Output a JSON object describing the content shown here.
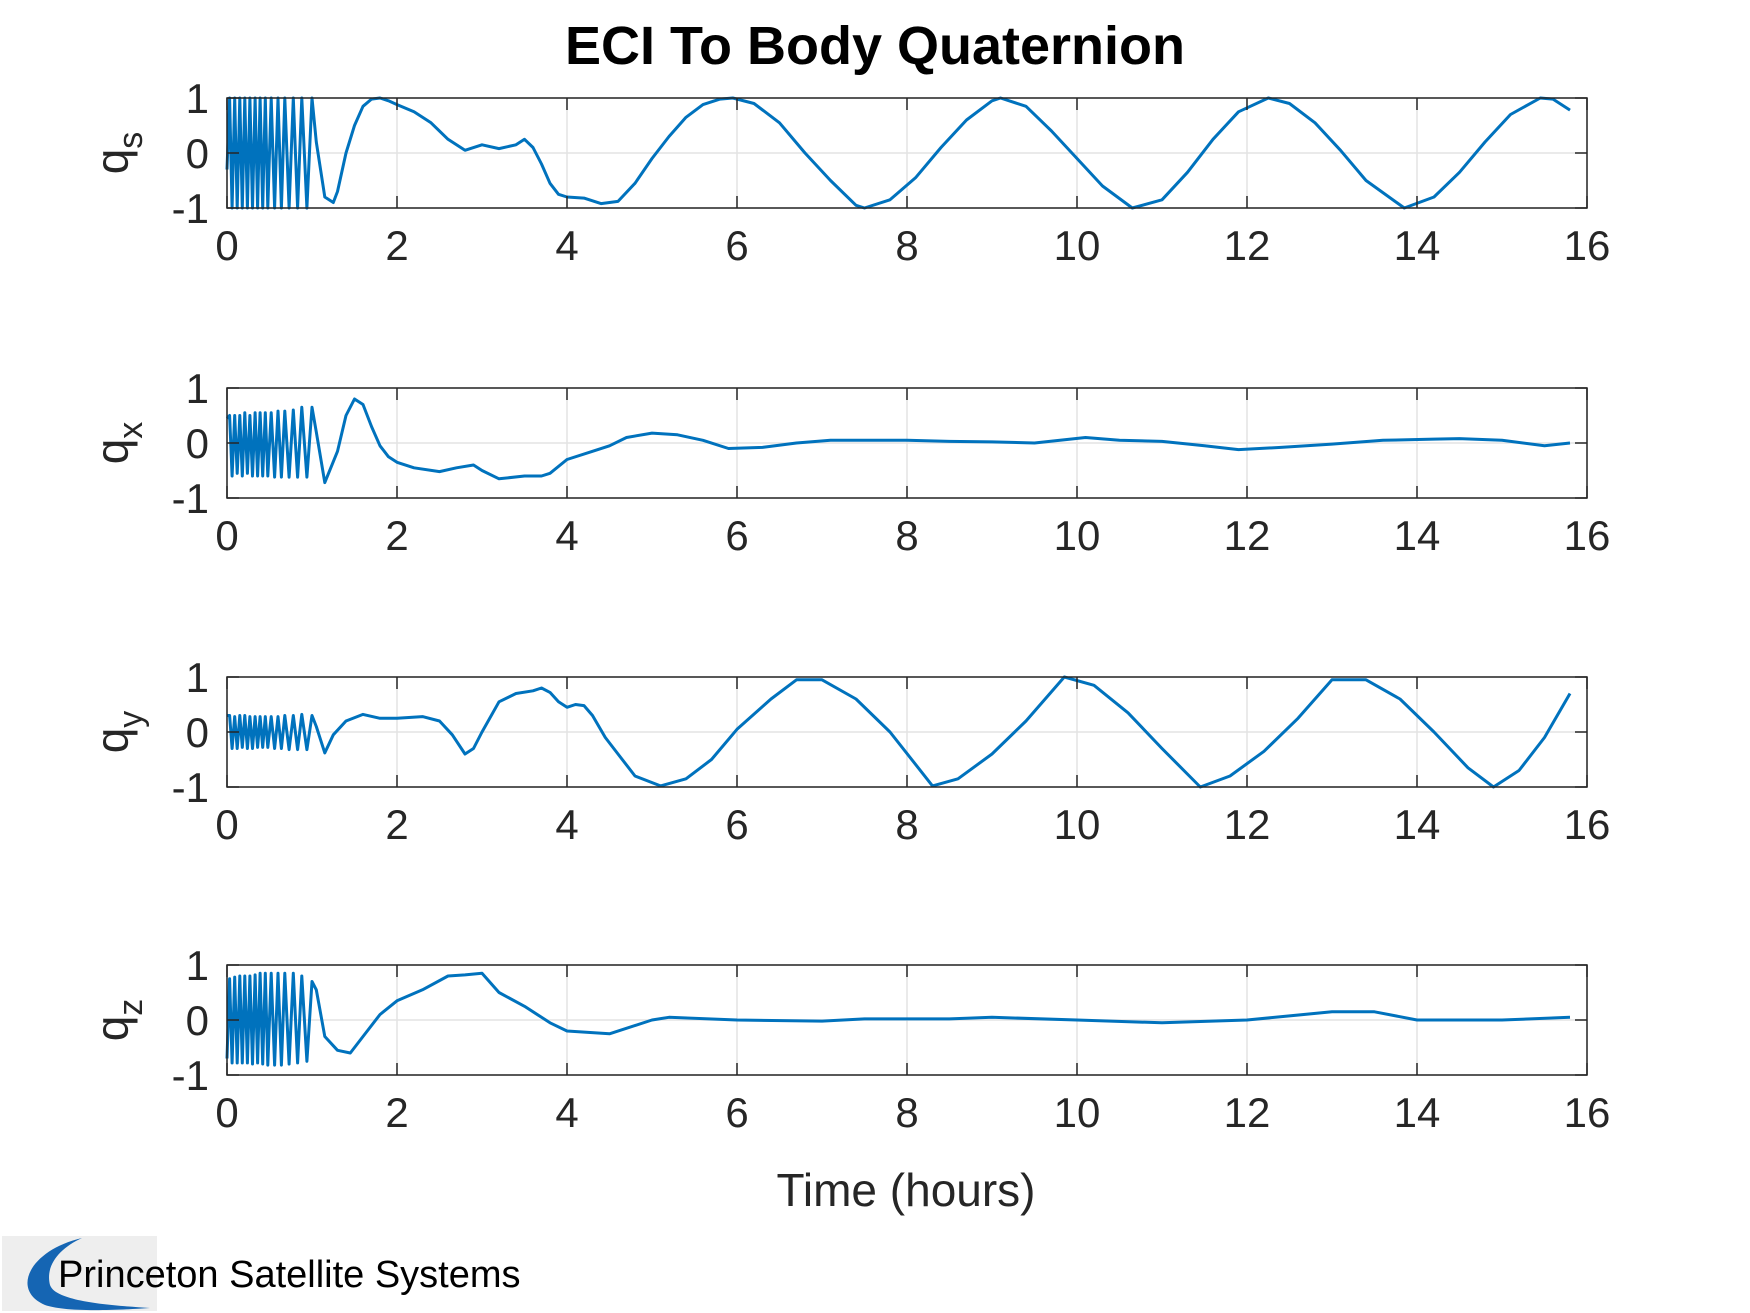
{
  "chart_data": {
    "type": "line",
    "title": "ECI To Body Quaternion",
    "xlabel": "Time (hours)",
    "xlim": [
      0,
      16
    ],
    "xticks": [
      0,
      2,
      4,
      6,
      8,
      10,
      12,
      14,
      16
    ],
    "ylim": [
      -1,
      1
    ],
    "yticks": [
      -1,
      0,
      1
    ],
    "grid": true,
    "line_color": "#0072BD",
    "panels": [
      {
        "ylabel": "q",
        "subscript": "s",
        "series": [
          {
            "x": [
              0,
              0.03,
              0.06,
              0.09,
              0.12,
              0.15,
              0.18,
              0.21,
              0.24,
              0.27,
              0.3,
              0.33,
              0.36,
              0.39,
              0.42,
              0.45,
              0.48,
              0.52,
              0.56,
              0.6,
              0.64,
              0.68,
              0.73,
              0.78,
              0.83,
              0.88,
              0.94,
              1.0,
              1.05,
              1.15,
              1.25,
              1.3,
              1.4,
              1.5,
              1.6,
              1.7,
              1.8,
              1.9,
              2.0,
              2.2,
              2.4,
              2.6,
              2.8,
              3.0,
              3.2,
              3.4,
              3.5,
              3.6,
              3.7,
              3.8,
              3.9,
              4.0,
              4.2,
              4.4,
              4.6,
              4.8,
              5.0,
              5.2,
              5.4,
              5.6,
              5.8,
              5.95,
              6.2,
              6.5,
              6.8,
              7.1,
              7.4,
              7.5,
              7.8,
              8.1,
              8.4,
              8.7,
              9.0,
              9.1,
              9.4,
              9.7,
              10.0,
              10.3,
              10.65,
              11.0,
              11.3,
              11.6,
              11.9,
              12.25,
              12.5,
              12.8,
              13.1,
              13.4,
              13.85,
              14.2,
              14.5,
              14.8,
              15.1,
              15.45,
              15.6,
              15.8
            ],
            "y": [
              -0.3,
              1,
              -1,
              1,
              -1,
              1,
              -1,
              1,
              -1,
              1,
              -1,
              1,
              -1,
              1,
              -1,
              1,
              -1,
              1,
              -1,
              1,
              -1,
              1,
              -1,
              1,
              -1,
              1,
              -1,
              1,
              0.2,
              -0.8,
              -0.9,
              -0.7,
              0,
              0.5,
              0.85,
              0.98,
              1,
              0.95,
              0.88,
              0.75,
              0.55,
              0.25,
              0.05,
              0.15,
              0.08,
              0.15,
              0.25,
              0.1,
              -0.2,
              -0.55,
              -0.75,
              -0.8,
              -0.82,
              -0.92,
              -0.88,
              -0.55,
              -0.1,
              0.3,
              0.65,
              0.88,
              0.98,
              1,
              0.9,
              0.55,
              0,
              -0.5,
              -0.95,
              -1,
              -0.85,
              -0.45,
              0.1,
              0.6,
              0.95,
              1,
              0.85,
              0.4,
              -0.1,
              -0.6,
              -1,
              -0.85,
              -0.35,
              0.25,
              0.75,
              1,
              0.9,
              0.55,
              0.05,
              -0.5,
              -1,
              -0.8,
              -0.35,
              0.2,
              0.7,
              1,
              0.98,
              0.78
            ]
          }
        ]
      },
      {
        "ylabel": "q",
        "subscript": "x",
        "series": [
          {
            "x": [
              0,
              0.03,
              0.06,
              0.09,
              0.12,
              0.15,
              0.18,
              0.21,
              0.24,
              0.27,
              0.3,
              0.33,
              0.36,
              0.39,
              0.42,
              0.45,
              0.48,
              0.52,
              0.56,
              0.6,
              0.64,
              0.68,
              0.73,
              0.78,
              0.83,
              0.88,
              0.94,
              1.0,
              1.05,
              1.15,
              1.3,
              1.4,
              1.5,
              1.6,
              1.7,
              1.8,
              1.9,
              2.0,
              2.2,
              2.5,
              2.7,
              2.9,
              3.0,
              3.2,
              3.5,
              3.7,
              3.8,
              4.0,
              4.3,
              4.5,
              4.7,
              5.0,
              5.3,
              5.6,
              5.9,
              6.3,
              6.7,
              7.1,
              7.5,
              8.0,
              8.5,
              9.0,
              9.5,
              10.1,
              10.5,
              11.0,
              11.5,
              11.9,
              12.4,
              13.0,
              13.6,
              14.2,
              14.5,
              15.0,
              15.5,
              15.8
            ],
            "y": [
              0.45,
              0.5,
              -0.6,
              0.5,
              -0.55,
              0.5,
              -0.6,
              0.55,
              -0.55,
              0.5,
              -0.6,
              0.55,
              -0.6,
              0.55,
              -0.6,
              0.55,
              -0.6,
              0.55,
              -0.62,
              0.58,
              -0.62,
              0.58,
              -0.62,
              0.6,
              -0.62,
              0.65,
              -0.62,
              0.65,
              0.2,
              -0.72,
              -0.15,
              0.5,
              0.8,
              0.7,
              0.3,
              -0.05,
              -0.25,
              -0.35,
              -0.45,
              -0.52,
              -0.45,
              -0.4,
              -0.5,
              -0.65,
              -0.6,
              -0.6,
              -0.55,
              -0.3,
              -0.15,
              -0.05,
              0.1,
              0.18,
              0.15,
              0.05,
              -0.1,
              -0.08,
              0,
              0.05,
              0.05,
              0.05,
              0.03,
              0.02,
              0,
              0.1,
              0.05,
              0.03,
              -0.05,
              -0.12,
              -0.08,
              -0.02,
              0.05,
              0.07,
              0.08,
              0.05,
              -0.05,
              0
            ]
          }
        ]
      },
      {
        "ylabel": "q",
        "subscript": "y",
        "series": [
          {
            "x": [
              0,
              0.03,
              0.06,
              0.09,
              0.12,
              0.15,
              0.18,
              0.21,
              0.24,
              0.27,
              0.3,
              0.33,
              0.36,
              0.39,
              0.42,
              0.45,
              0.48,
              0.52,
              0.56,
              0.6,
              0.64,
              0.68,
              0.73,
              0.78,
              0.83,
              0.88,
              0.94,
              1.0,
              1.05,
              1.15,
              1.25,
              1.4,
              1.6,
              1.8,
              2.0,
              2.3,
              2.5,
              2.65,
              2.8,
              2.9,
              3.0,
              3.2,
              3.4,
              3.6,
              3.7,
              3.8,
              3.9,
              4.0,
              4.1,
              4.2,
              4.3,
              4.45,
              4.6,
              4.8,
              5.1,
              5.4,
              5.7,
              6.0,
              6.4,
              6.7,
              7.0,
              7.4,
              7.8,
              8.3,
              8.6,
              9.0,
              9.4,
              9.85,
              10.2,
              10.6,
              11.0,
              11.45,
              11.8,
              12.2,
              12.6,
              13.0,
              13.4,
              13.8,
              14.2,
              14.6,
              14.9,
              15.2,
              15.5,
              15.8
            ],
            "y": [
              0.3,
              0.3,
              -0.3,
              0.28,
              -0.3,
              0.3,
              -0.28,
              0.3,
              -0.3,
              0.28,
              -0.3,
              0.28,
              -0.28,
              0.28,
              -0.28,
              0.28,
              -0.28,
              0.28,
              -0.3,
              0.28,
              -0.3,
              0.3,
              -0.32,
              0.3,
              -0.32,
              0.32,
              -0.32,
              0.3,
              0.1,
              -0.38,
              -0.05,
              0.2,
              0.32,
              0.25,
              0.25,
              0.28,
              0.2,
              -0.05,
              -0.4,
              -0.3,
              0,
              0.55,
              0.7,
              0.75,
              0.8,
              0.72,
              0.55,
              0.45,
              0.5,
              0.48,
              0.3,
              -0.1,
              -0.4,
              -0.8,
              -0.98,
              -0.85,
              -0.5,
              0.05,
              0.6,
              0.95,
              0.95,
              0.6,
              0,
              -0.98,
              -0.85,
              -0.4,
              0.2,
              1,
              0.85,
              0.35,
              -0.3,
              -1,
              -0.8,
              -0.35,
              0.25,
              0.95,
              0.95,
              0.6,
              0,
              -0.65,
              -1,
              -0.7,
              -0.1,
              0.7
            ]
          }
        ]
      },
      {
        "ylabel": "q",
        "subscript": "z",
        "series": [
          {
            "x": [
              0,
              0.03,
              0.06,
              0.09,
              0.12,
              0.15,
              0.18,
              0.21,
              0.24,
              0.27,
              0.3,
              0.33,
              0.36,
              0.39,
              0.42,
              0.45,
              0.48,
              0.52,
              0.56,
              0.6,
              0.64,
              0.68,
              0.73,
              0.78,
              0.83,
              0.88,
              0.94,
              1.0,
              1.05,
              1.15,
              1.3,
              1.45,
              1.6,
              1.8,
              2.0,
              2.3,
              2.6,
              2.8,
              3.0,
              3.2,
              3.5,
              3.7,
              3.8,
              4.0,
              4.5,
              5.0,
              5.2,
              6.0,
              7.0,
              7.5,
              8.5,
              9.0,
              10.0,
              11.0,
              12.0,
              13.0,
              13.5,
              14.0,
              15.0,
              15.8
            ],
            "y": [
              -0.7,
              0.75,
              -0.78,
              0.78,
              -0.78,
              0.8,
              -0.78,
              0.8,
              -0.78,
              0.8,
              -0.8,
              0.82,
              -0.78,
              0.85,
              -0.8,
              0.85,
              -0.82,
              0.85,
              -0.82,
              0.85,
              -0.82,
              0.85,
              -0.8,
              0.85,
              -0.78,
              0.8,
              -0.75,
              0.7,
              0.55,
              -0.3,
              -0.55,
              -0.6,
              -0.3,
              0.1,
              0.35,
              0.55,
              0.8,
              0.82,
              0.85,
              0.5,
              0.25,
              0.05,
              -0.05,
              -0.2,
              -0.25,
              0,
              0.05,
              0,
              -0.02,
              0.02,
              0.02,
              0.05,
              0,
              -0.05,
              0,
              0.15,
              0.15,
              0,
              0,
              0.05
            ]
          }
        ]
      }
    ]
  },
  "logo": {
    "text": "Princeton Satellite Systems"
  }
}
